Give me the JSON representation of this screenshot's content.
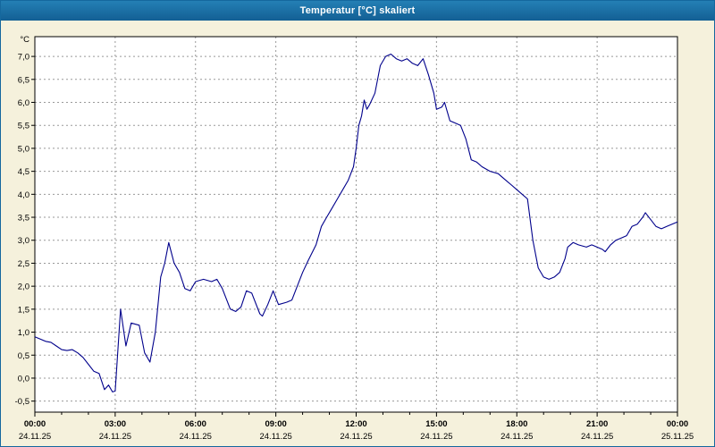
{
  "window": {
    "title": "Temperatur [°C] skaliert"
  },
  "colors": {
    "titlebar": "#1A6CA4",
    "background": "#F5F1DC",
    "plot_background": "#FFFFFF",
    "grid": "#999999",
    "axis": "#000000",
    "line": "#00008B"
  },
  "chart_data": {
    "type": "line",
    "title": "Temperatur [°C] skaliert",
    "ylabel": "°C",
    "xlabel": "",
    "xlim": [
      0,
      24
    ],
    "ylim": [
      -0.74,
      7.43
    ],
    "grid": true,
    "grid_style": "dashed",
    "legend_position": "none",
    "y_ticks": [
      {
        "value": 7.0,
        "label": "7,0"
      },
      {
        "value": 6.5,
        "label": "6,5"
      },
      {
        "value": 6.0,
        "label": "6,0"
      },
      {
        "value": 5.5,
        "label": "5,5"
      },
      {
        "value": 5.0,
        "label": "5,0"
      },
      {
        "value": 4.5,
        "label": "4,5"
      },
      {
        "value": 4.0,
        "label": "4,0"
      },
      {
        "value": 3.5,
        "label": "3,5"
      },
      {
        "value": 3.0,
        "label": "3,0"
      },
      {
        "value": 2.5,
        "label": "2,5"
      },
      {
        "value": 2.0,
        "label": "2,0"
      },
      {
        "value": 1.5,
        "label": "1,5"
      },
      {
        "value": 1.0,
        "label": "1,0"
      },
      {
        "value": 0.5,
        "label": "0,5"
      },
      {
        "value": 0.0,
        "label": "0,0"
      },
      {
        "value": -0.5,
        "label": "-0,5"
      }
    ],
    "x_ticks": [
      {
        "hour": 0,
        "time": "00:00",
        "date": "24.11.25"
      },
      {
        "hour": 3,
        "time": "03:00",
        "date": "24.11.25"
      },
      {
        "hour": 6,
        "time": "06:00",
        "date": "24.11.25"
      },
      {
        "hour": 9,
        "time": "09:00",
        "date": "24.11.25"
      },
      {
        "hour": 12,
        "time": "12:00",
        "date": "24.11.25"
      },
      {
        "hour": 15,
        "time": "15:00",
        "date": "24.11.25"
      },
      {
        "hour": 18,
        "time": "18:00",
        "date": "24.11.25"
      },
      {
        "hour": 21,
        "time": "21:00",
        "date": "24.11.25"
      },
      {
        "hour": 24,
        "time": "00:00",
        "date": "25.11.25"
      }
    ],
    "minor_x_tick_step_hours": 1,
    "series": [
      {
        "name": "Temperatur",
        "color": "#00008B",
        "x": [
          0,
          0.2,
          0.4,
          0.6,
          0.8,
          1.0,
          1.2,
          1.4,
          1.6,
          1.8,
          2.0,
          2.2,
          2.4,
          2.6,
          2.75,
          2.9,
          3.0,
          3.2,
          3.4,
          3.6,
          3.9,
          4.1,
          4.3,
          4.5,
          4.7,
          4.85,
          5.0,
          5.2,
          5.4,
          5.6,
          5.8,
          6.0,
          6.3,
          6.6,
          6.8,
          7.0,
          7.3,
          7.5,
          7.7,
          7.9,
          8.1,
          8.4,
          8.5,
          8.7,
          8.9,
          9.1,
          9.4,
          9.6,
          9.8,
          10.0,
          10.2,
          10.5,
          10.7,
          10.9,
          11.1,
          11.3,
          11.5,
          11.7,
          11.9,
          12.0,
          12.1,
          12.2,
          12.3,
          12.4,
          12.5,
          12.7,
          12.8,
          12.9,
          13.1,
          13.3,
          13.5,
          13.7,
          13.9,
          14.1,
          14.3,
          14.5,
          14.7,
          14.9,
          15.0,
          15.2,
          15.3,
          15.5,
          15.7,
          15.9,
          16.1,
          16.3,
          16.5,
          16.7,
          17.0,
          17.3,
          17.6,
          17.8,
          18.0,
          18.2,
          18.4,
          18.6,
          18.8,
          19.0,
          19.2,
          19.4,
          19.6,
          19.8,
          19.9,
          20.1,
          20.3,
          20.6,
          20.8,
          21.0,
          21.2,
          21.3,
          21.5,
          21.7,
          21.9,
          22.1,
          22.3,
          22.5,
          22.7,
          22.8,
          23.0,
          23.2,
          23.4,
          23.6,
          23.8,
          24.0
        ],
        "y": [
          0.9,
          0.85,
          0.8,
          0.78,
          0.7,
          0.62,
          0.6,
          0.62,
          0.55,
          0.45,
          0.3,
          0.15,
          0.1,
          -0.25,
          -0.15,
          -0.3,
          -0.28,
          1.5,
          0.7,
          1.2,
          1.15,
          0.55,
          0.35,
          1.0,
          2.2,
          2.5,
          2.95,
          2.5,
          2.3,
          1.95,
          1.9,
          2.1,
          2.15,
          2.1,
          2.15,
          1.95,
          1.5,
          1.45,
          1.55,
          1.9,
          1.85,
          1.4,
          1.35,
          1.6,
          1.9,
          1.6,
          1.65,
          1.7,
          2.0,
          2.3,
          2.55,
          2.9,
          3.3,
          3.5,
          3.7,
          3.9,
          4.1,
          4.3,
          4.6,
          5.0,
          5.5,
          5.7,
          6.05,
          5.85,
          5.95,
          6.2,
          6.5,
          6.8,
          7.0,
          7.05,
          6.95,
          6.9,
          6.95,
          6.85,
          6.8,
          6.95,
          6.6,
          6.2,
          5.85,
          5.9,
          6.0,
          5.6,
          5.55,
          5.5,
          5.2,
          4.75,
          4.7,
          4.6,
          4.5,
          4.45,
          4.3,
          4.2,
          4.1,
          4.0,
          3.9,
          3.0,
          2.4,
          2.2,
          2.15,
          2.2,
          2.3,
          2.6,
          2.85,
          2.95,
          2.9,
          2.85,
          2.9,
          2.85,
          2.8,
          2.75,
          2.9,
          3.0,
          3.05,
          3.1,
          3.3,
          3.35,
          3.5,
          3.6,
          3.45,
          3.3,
          3.25,
          3.3,
          3.35,
          3.4
        ]
      }
    ]
  }
}
